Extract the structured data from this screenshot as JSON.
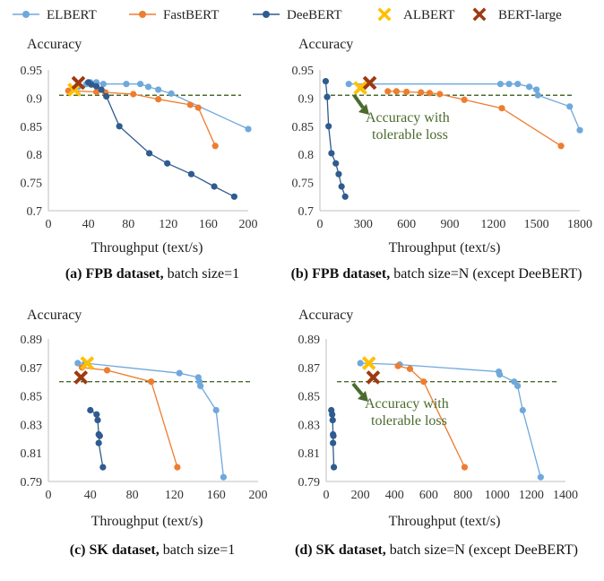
{
  "legend": [
    {
      "label": "ELBERT",
      "color": "#6fa8dc",
      "marker": "line-circle"
    },
    {
      "label": "FastBERT",
      "color": "#ed7d31",
      "marker": "line-circle"
    },
    {
      "label": "DeeBERT",
      "color": "#2f5b8f",
      "marker": "line-circle"
    },
    {
      "label": "ALBERT",
      "color": "#ffc000",
      "marker": "cross"
    },
    {
      "label": "BERT-large",
      "color": "#9e3a10",
      "marker": "cross"
    }
  ],
  "captions": [
    {
      "bold": "(a) FPB dataset,",
      "rest": " batch size=1"
    },
    {
      "bold": "(b) FPB dataset,",
      "rest": " batch size=N (except DeeBERT)"
    },
    {
      "bold": "(c) SK dataset,",
      "rest": " batch size=1"
    },
    {
      "bold": "(d) SK dataset,",
      "rest": " batch size=N (except DeeBERT)"
    }
  ],
  "chart_data": [
    {
      "type": "scatter",
      "title": "(a) FPB dataset, batch size=1",
      "xlabel": "Throughput (text/s)",
      "ylabel": "Accuracy",
      "xlim": [
        0,
        200
      ],
      "xticks": [
        0,
        40,
        80,
        120,
        160,
        200
      ],
      "ylim": [
        0.7,
        0.95
      ],
      "yticks": [
        "0.7",
        "0.75",
        "0.8",
        "0.85",
        "0.9",
        "0.95"
      ],
      "reference_line": 0.905,
      "series": [
        {
          "name": "ELBERT",
          "x": [
            30,
            38,
            42,
            48,
            55,
            78,
            92,
            100,
            110,
            123,
            200
          ],
          "y": [
            0.92,
            0.925,
            0.928,
            0.928,
            0.925,
            0.925,
            0.925,
            0.92,
            0.915,
            0.908,
            0.845
          ]
        },
        {
          "name": "FastBERT",
          "x": [
            20,
            48,
            57,
            85,
            110,
            142,
            150,
            167
          ],
          "y": [
            0.913,
            0.911,
            0.91,
            0.907,
            0.898,
            0.888,
            0.883,
            0.815
          ]
        },
        {
          "name": "DeeBERT",
          "x": [
            40,
            43,
            48,
            53,
            58,
            71,
            101,
            119,
            143,
            166,
            186
          ],
          "y": [
            0.928,
            0.924,
            0.921,
            0.915,
            0.903,
            0.85,
            0.802,
            0.784,
            0.765,
            0.743,
            0.725
          ]
        },
        {
          "name": "ALBERT",
          "x": [
            26
          ],
          "y": [
            0.915
          ]
        },
        {
          "name": "BERT-large",
          "x": [
            30
          ],
          "y": [
            0.927
          ]
        }
      ]
    },
    {
      "type": "scatter",
      "title": "(b) FPB dataset, batch size=N (except DeeBERT)",
      "xlabel": "Throughput (text/s)",
      "ylabel": "Accuracy",
      "xlim": [
        0,
        1800
      ],
      "xticks": [
        0,
        300,
        600,
        900,
        1200,
        1500,
        1800
      ],
      "ylim": [
        0.7,
        0.95
      ],
      "yticks": [
        "0.7",
        "0.75",
        "0.8",
        "0.85",
        "0.9",
        "0.95"
      ],
      "reference_line": 0.905,
      "annotation": {
        "lines": [
          "Accuracy with",
          "tolerable loss"
        ],
        "arrow": true
      },
      "series": [
        {
          "name": "ELBERT",
          "x": [
            200,
            1250,
            1310,
            1370,
            1450,
            1500,
            1510,
            1730,
            1800
          ],
          "y": [
            0.925,
            0.925,
            0.925,
            0.925,
            0.92,
            0.915,
            0.905,
            0.885,
            0.843
          ]
        },
        {
          "name": "FastBERT",
          "x": [
            470,
            530,
            600,
            700,
            760,
            830,
            1000,
            1260,
            1670
          ],
          "y": [
            0.912,
            0.912,
            0.911,
            0.91,
            0.909,
            0.907,
            0.897,
            0.882,
            0.815
          ]
        },
        {
          "name": "DeeBERT",
          "x": [
            40,
            50,
            60,
            80,
            110,
            130,
            150,
            175
          ],
          "y": [
            0.93,
            0.902,
            0.85,
            0.802,
            0.784,
            0.765,
            0.743,
            0.725
          ]
        },
        {
          "name": "ALBERT",
          "x": [
            280
          ],
          "y": [
            0.918
          ]
        },
        {
          "name": "BERT-large",
          "x": [
            345
          ],
          "y": [
            0.927
          ]
        }
      ]
    },
    {
      "type": "scatter",
      "title": "(c) SK dataset, batch size=1",
      "xlabel": "Throughput (text/s)",
      "ylabel": "Accuracy",
      "xlim": [
        0,
        200
      ],
      "xticks": [
        0,
        40,
        80,
        120,
        160,
        200
      ],
      "ylim": [
        0.79,
        0.89
      ],
      "yticks": [
        "0.79",
        "0.81",
        "0.83",
        "0.85",
        "0.87",
        "0.89"
      ],
      "reference_line": 0.86,
      "series": [
        {
          "name": "ELBERT",
          "x": [
            28,
            35,
            125,
            143,
            144,
            145,
            160,
            167
          ],
          "y": [
            0.873,
            0.873,
            0.866,
            0.863,
            0.86,
            0.857,
            0.84,
            0.793
          ]
        },
        {
          "name": "FastBERT",
          "x": [
            32,
            56,
            98,
            123
          ],
          "y": [
            0.87,
            0.868,
            0.86,
            0.8
          ]
        },
        {
          "name": "DeeBERT",
          "x": [
            40,
            46,
            47,
            48,
            49,
            48,
            52
          ],
          "y": [
            0.84,
            0.837,
            0.833,
            0.823,
            0.822,
            0.817,
            0.8
          ]
        },
        {
          "name": "ALBERT",
          "x": [
            37
          ],
          "y": [
            0.873
          ]
        },
        {
          "name": "BERT-large",
          "x": [
            31
          ],
          "y": [
            0.863
          ]
        }
      ]
    },
    {
      "type": "scatter",
      "title": "(d) SK dataset, batch size=N (except DeeBERT)",
      "xlabel": "Throughput (text/s)",
      "ylabel": "Accuracy",
      "xlim": [
        0,
        1400
      ],
      "xticks": [
        0,
        200,
        400,
        600,
        800,
        1000,
        1200,
        1400
      ],
      "ylim": [
        0.79,
        0.89
      ],
      "yticks": [
        "0.79",
        "0.81",
        "0.83",
        "0.85",
        "0.87",
        "0.89"
      ],
      "reference_line": 0.86,
      "annotation": {
        "lines": [
          "Accuracy with",
          "tolerable loss"
        ],
        "arrow": true
      },
      "series": [
        {
          "name": "ELBERT",
          "x": [
            200,
            430,
            1010,
            1015,
            1100,
            1120,
            1150,
            1255
          ],
          "y": [
            0.873,
            0.872,
            0.867,
            0.865,
            0.86,
            0.857,
            0.84,
            0.793
          ]
        },
        {
          "name": "FastBERT",
          "x": [
            420,
            490,
            570,
            810
          ],
          "y": [
            0.871,
            0.869,
            0.86,
            0.8
          ]
        },
        {
          "name": "DeeBERT",
          "x": [
            30,
            35,
            38,
            40,
            42,
            40,
            45
          ],
          "y": [
            0.84,
            0.837,
            0.833,
            0.823,
            0.822,
            0.817,
            0.8
          ]
        },
        {
          "name": "ALBERT",
          "x": [
            250
          ],
          "y": [
            0.873
          ]
        },
        {
          "name": "BERT-large",
          "x": [
            275
          ],
          "y": [
            0.863
          ]
        }
      ]
    }
  ]
}
